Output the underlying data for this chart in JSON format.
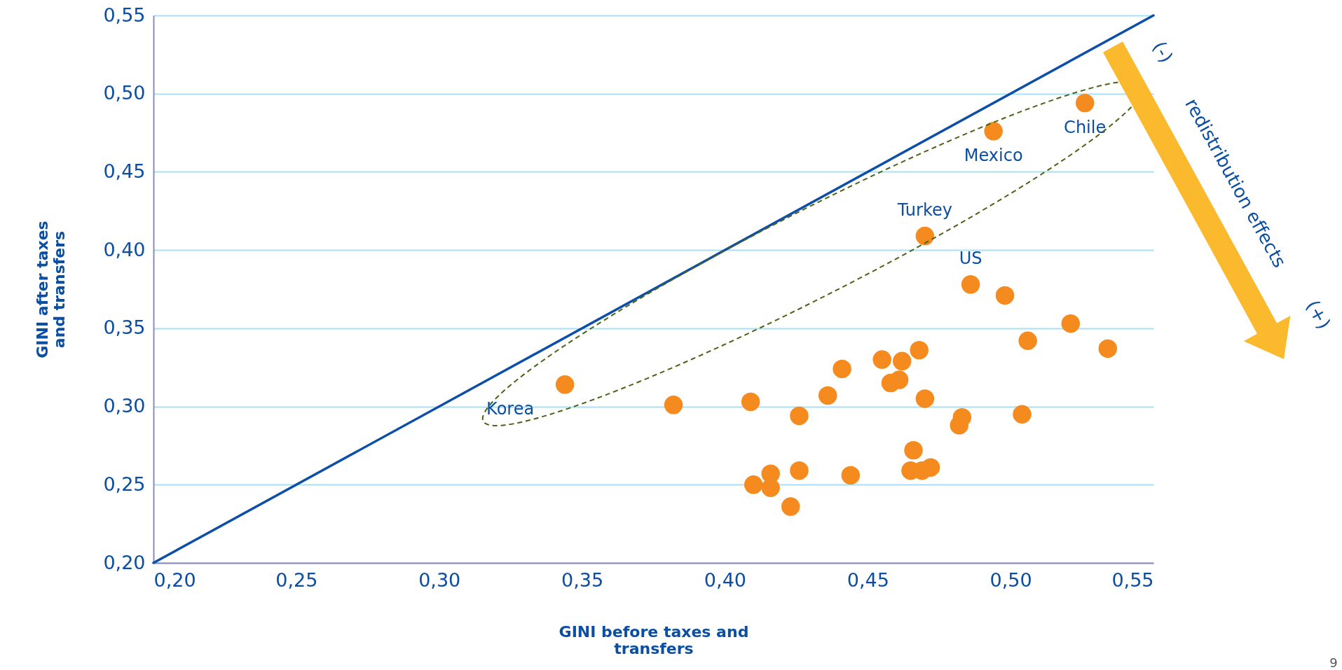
{
  "chart_data": {
    "type": "scatter",
    "xlabel": "GINI before taxes and transfers",
    "ylabel": "GINI after taxes and transfers",
    "xlim": [
      0.2,
      0.55
    ],
    "ylim": [
      0.2,
      0.55
    ],
    "xticks": [
      {
        "value": 0.2,
        "label": "0,20"
      },
      {
        "value": 0.25,
        "label": "0,25"
      },
      {
        "value": 0.3,
        "label": "0,30"
      },
      {
        "value": 0.35,
        "label": "0,35"
      },
      {
        "value": 0.4,
        "label": "0,40"
      },
      {
        "value": 0.45,
        "label": "0,45"
      },
      {
        "value": 0.5,
        "label": "0,50"
      },
      {
        "value": 0.55,
        "label": "0,55"
      }
    ],
    "yticks": [
      {
        "value": 0.2,
        "label": "0,20"
      },
      {
        "value": 0.25,
        "label": "0,25"
      },
      {
        "value": 0.3,
        "label": "0,30"
      },
      {
        "value": 0.35,
        "label": "0,35"
      },
      {
        "value": 0.4,
        "label": "0,40"
      },
      {
        "value": 0.45,
        "label": "0,45"
      },
      {
        "value": 0.5,
        "label": "0,50"
      },
      {
        "value": 0.55,
        "label": "0,55"
      }
    ],
    "grid": "y",
    "series": [
      {
        "type": "line",
        "color": "#0d4fa8",
        "x": [
          0.2,
          0.55
        ],
        "values": [
          0.2,
          0.55
        ]
      },
      {
        "marker": "circle",
        "color": "#f58a1f",
        "x": [
          0.344,
          0.382,
          0.409,
          0.41,
          0.416,
          0.416,
          0.423,
          0.426,
          0.426,
          0.436,
          0.441,
          0.444,
          0.455,
          0.458,
          0.461,
          0.462,
          0.468,
          0.47,
          0.466,
          0.465,
          0.469,
          0.472,
          0.482,
          0.483,
          0.47,
          0.486,
          0.494,
          0.498,
          0.504,
          0.506,
          0.521,
          0.526,
          0.534
        ],
        "values": [
          0.314,
          0.301,
          0.303,
          0.25,
          0.257,
          0.248,
          0.236,
          0.294,
          0.259,
          0.307,
          0.324,
          0.256,
          0.33,
          0.315,
          0.317,
          0.329,
          0.336,
          0.305,
          0.272,
          0.259,
          0.259,
          0.261,
          0.288,
          0.293,
          0.409,
          0.378,
          0.476,
          0.371,
          0.295,
          0.342,
          0.353,
          0.494,
          0.337
        ]
      }
    ],
    "annotations": [
      {
        "text": "Korea",
        "x": 0.344,
        "y": 0.314
      },
      {
        "text": "Turkey",
        "x": 0.47,
        "y": 0.409
      },
      {
        "text": "US",
        "x": 0.486,
        "y": 0.378
      },
      {
        "text": "Mexico",
        "x": 0.494,
        "y": 0.476
      },
      {
        "text": "Chile",
        "x": 0.526,
        "y": 0.494
      },
      "(-)",
      "redistribution effects",
      "(+)",
      "9"
    ]
  }
}
